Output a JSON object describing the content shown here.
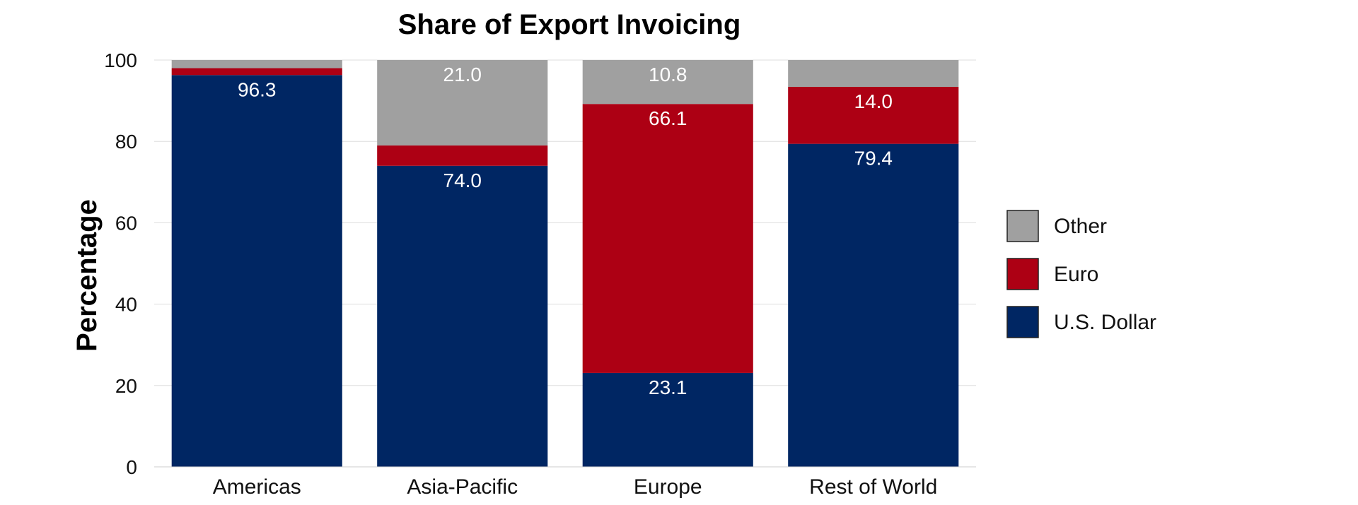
{
  "chart_data": {
    "type": "bar",
    "stacked": true,
    "title": "Share of Export Invoicing",
    "xlabel": "",
    "ylabel": "Percentage",
    "ylim": [
      0,
      100
    ],
    "yticks": [
      "0",
      "20",
      "40",
      "60",
      "80",
      "100"
    ],
    "grid": true,
    "legend_position": "right",
    "categories": [
      "Americas",
      "Asia-Pacific",
      "Europe",
      "Rest of World"
    ],
    "series": [
      {
        "name": "U.S. Dollar",
        "color": "#002663",
        "values": [
          96.3,
          74.0,
          23.1,
          79.4
        ],
        "labels": [
          "96.3",
          "74.0",
          "23.1",
          "79.4"
        ]
      },
      {
        "name": "Euro",
        "color": "#ad0014",
        "values": [
          1.7,
          5.0,
          66.1,
          14.0
        ],
        "labels": [
          "",
          "",
          "66.1",
          "14.0"
        ]
      },
      {
        "name": "Other",
        "color": "#a0a0a0",
        "values": [
          2.0,
          21.0,
          10.8,
          6.6
        ],
        "labels": [
          "",
          "21.0",
          "10.8",
          ""
        ]
      }
    ],
    "legend_order": [
      "Other",
      "Euro",
      "U.S. Dollar"
    ]
  }
}
